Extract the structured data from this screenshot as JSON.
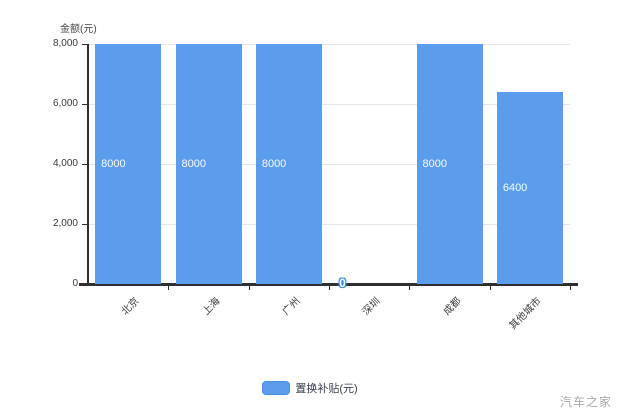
{
  "chart_data": {
    "type": "bar",
    "title": "",
    "y_axis_title": "金额(元)",
    "series_name": "置换补贴(元)",
    "categories": [
      "北京",
      "上海",
      "广州",
      "深圳",
      "成都",
      "其他城市"
    ],
    "values": [
      8000,
      8000,
      8000,
      0,
      8000,
      6400
    ],
    "ylim": [
      0,
      8000
    ],
    "yticks": [
      {
        "value": 0,
        "label": "0"
      },
      {
        "value": 2000,
        "label": "2,000"
      },
      {
        "value": 4000,
        "label": "4,000"
      },
      {
        "value": 6000,
        "label": "6,000"
      },
      {
        "value": 8000,
        "label": "8,000"
      }
    ],
    "grid": true,
    "legend_position": "bottom",
    "bar_color": "#5b9cec",
    "axis_color": "#2f2f2f",
    "grid_color": "#e6e6e6",
    "value_label_color": "#ffffff"
  },
  "legend": {
    "label": "置换补贴(元)"
  },
  "watermark": "汽车之家"
}
